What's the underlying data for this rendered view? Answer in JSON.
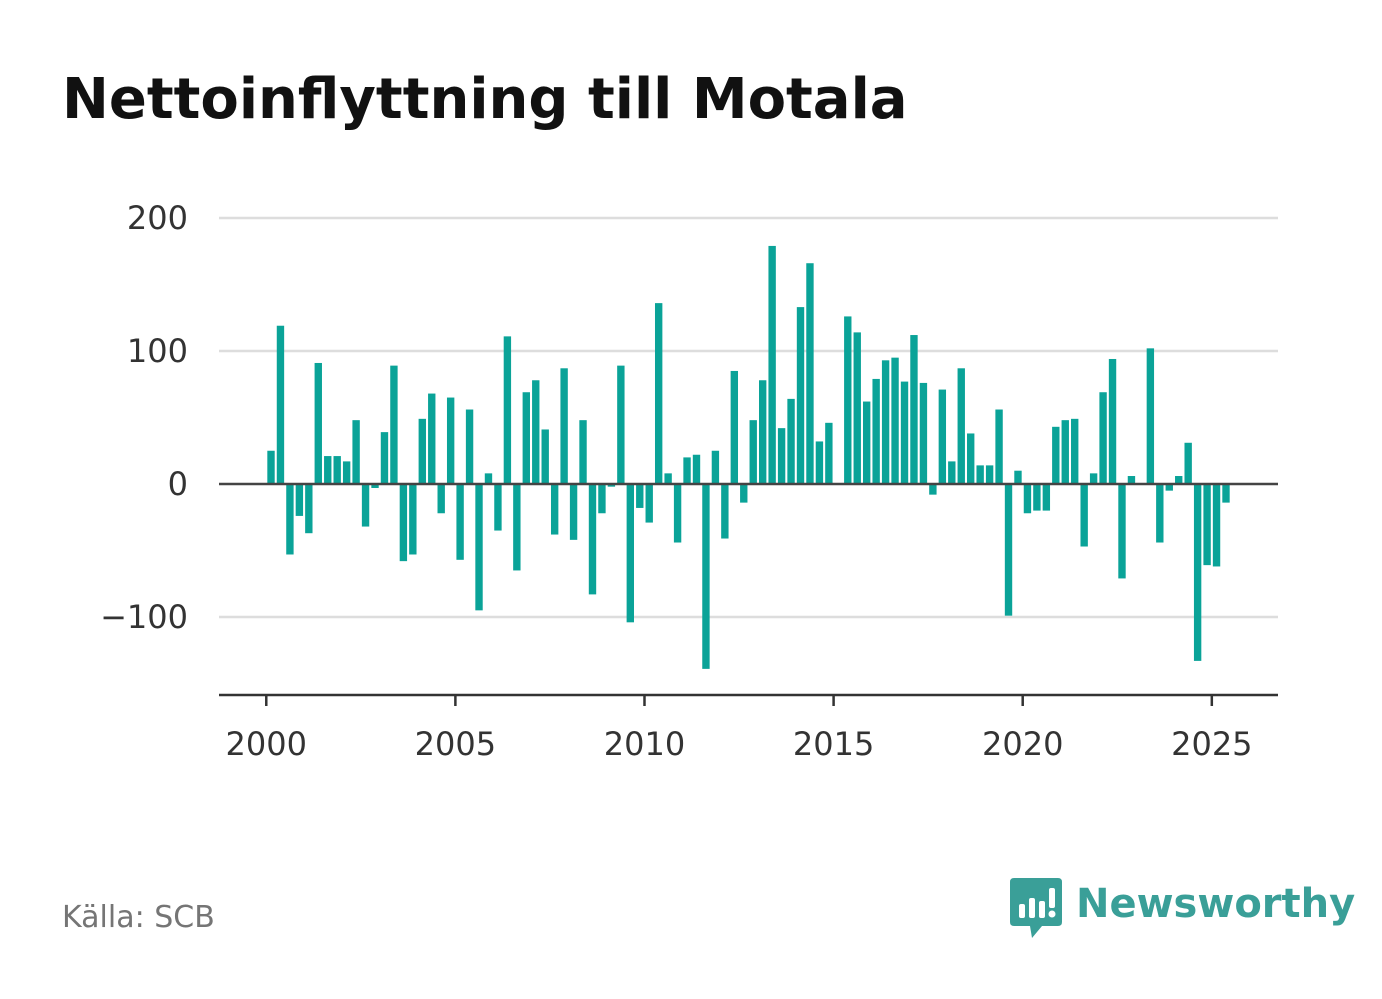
{
  "page": {
    "title": "Nettoinflyttning till Motala",
    "source": "Källa: SCB",
    "brand": {
      "name": "Newsworthy",
      "logo_icon": "bar-chart-speech-bubble-icon",
      "color": "#3a9f98"
    }
  },
  "chart_data": {
    "type": "bar",
    "title": "Nettoinflyttning till Motala",
    "xlabel": "",
    "ylabel": "",
    "bar_color": "#0aa398",
    "grid": true,
    "legend": "none",
    "xlim": [
      1998.75,
      2026.75
    ],
    "ylim": [
      -160,
      200
    ],
    "y_ticks": [
      {
        "value": 200,
        "label": "200"
      },
      {
        "value": 100,
        "label": "100"
      },
      {
        "value": 0,
        "label": "0"
      },
      {
        "value": -100,
        "label": "−100"
      }
    ],
    "x_ticks": [
      {
        "value": 2000,
        "label": "2000"
      },
      {
        "value": 2005,
        "label": "2005"
      },
      {
        "value": 2010,
        "label": "2010"
      },
      {
        "value": 2015,
        "label": "2015"
      },
      {
        "value": 2020,
        "label": "2020"
      },
      {
        "value": 2025,
        "label": "2025"
      }
    ],
    "start_year": 2000,
    "periods_per_year": 4,
    "values": [
      25,
      119,
      -53,
      -24,
      -37,
      91,
      21,
      21,
      17,
      48,
      -32,
      -3,
      39,
      89,
      -58,
      -53,
      49,
      68,
      -22,
      65,
      -57,
      56,
      -95,
      8,
      -35,
      111,
      -65,
      69,
      78,
      41,
      -38,
      87,
      -42,
      48,
      -83,
      -22,
      -2,
      89,
      -104,
      -18,
      -29,
      136,
      8,
      -44,
      20,
      22,
      -139,
      25,
      -41,
      85,
      -14,
      48,
      78,
      179,
      42,
      64,
      133,
      166,
      32,
      46,
      0,
      126,
      114,
      62,
      79,
      93,
      95,
      77,
      112,
      76,
      -8,
      71,
      17,
      87,
      38,
      14,
      14,
      56,
      -99,
      10,
      -22,
      -20,
      -20,
      43,
      48,
      49,
      -47,
      8,
      69,
      94,
      -71,
      6,
      0,
      102,
      -44,
      -5,
      6,
      31,
      -133,
      -61,
      -62,
      -14
    ]
  }
}
